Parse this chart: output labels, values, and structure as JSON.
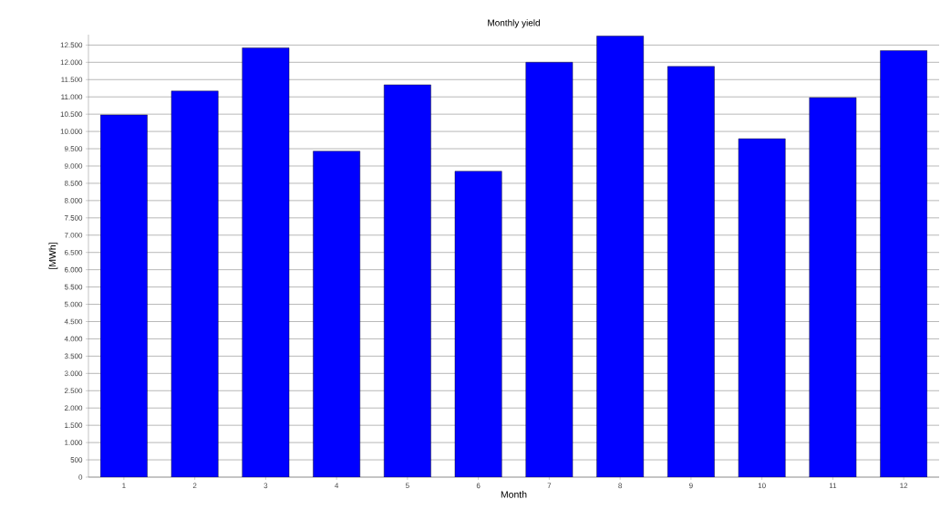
{
  "chart_data": {
    "type": "bar",
    "title": "Monthly yield",
    "xlabel": "Month",
    "ylabel": "[MWh]",
    "categories": [
      "1",
      "2",
      "3",
      "4",
      "5",
      "6",
      "7",
      "8",
      "9",
      "10",
      "11",
      "12"
    ],
    "values": [
      10480,
      11170,
      12420,
      9430,
      11350,
      8850,
      12000,
      12760,
      11880,
      9790,
      10980,
      12340
    ],
    "color": "#0000ff",
    "ylim": [
      0,
      12800
    ],
    "yticks": [
      {
        "value": 0,
        "label": "0"
      },
      {
        "value": 500,
        "label": "500"
      },
      {
        "value": 1000,
        "label": "1.000"
      },
      {
        "value": 1500,
        "label": "1.500"
      },
      {
        "value": 2000,
        "label": "2.000"
      },
      {
        "value": 2500,
        "label": "2.500"
      },
      {
        "value": 3000,
        "label": "3.000"
      },
      {
        "value": 3500,
        "label": "3.500"
      },
      {
        "value": 4000,
        "label": "4.000"
      },
      {
        "value": 4500,
        "label": "4.500"
      },
      {
        "value": 5000,
        "label": "5.000"
      },
      {
        "value": 5500,
        "label": "5.500"
      },
      {
        "value": 6000,
        "label": "6.000"
      },
      {
        "value": 6500,
        "label": "6.500"
      },
      {
        "value": 7000,
        "label": "7.000"
      },
      {
        "value": 7500,
        "label": "7.500"
      },
      {
        "value": 8000,
        "label": "8.000"
      },
      {
        "value": 8500,
        "label": "8.500"
      },
      {
        "value": 9000,
        "label": "9.000"
      },
      {
        "value": 9500,
        "label": "9.500"
      },
      {
        "value": 10000,
        "label": "10.000"
      },
      {
        "value": 10500,
        "label": "10.500"
      },
      {
        "value": 11000,
        "label": "11.000"
      },
      {
        "value": 11500,
        "label": "11.500"
      },
      {
        "value": 12000,
        "label": "12.000"
      },
      {
        "value": 12500,
        "label": "12.500"
      }
    ],
    "grid": "y"
  }
}
